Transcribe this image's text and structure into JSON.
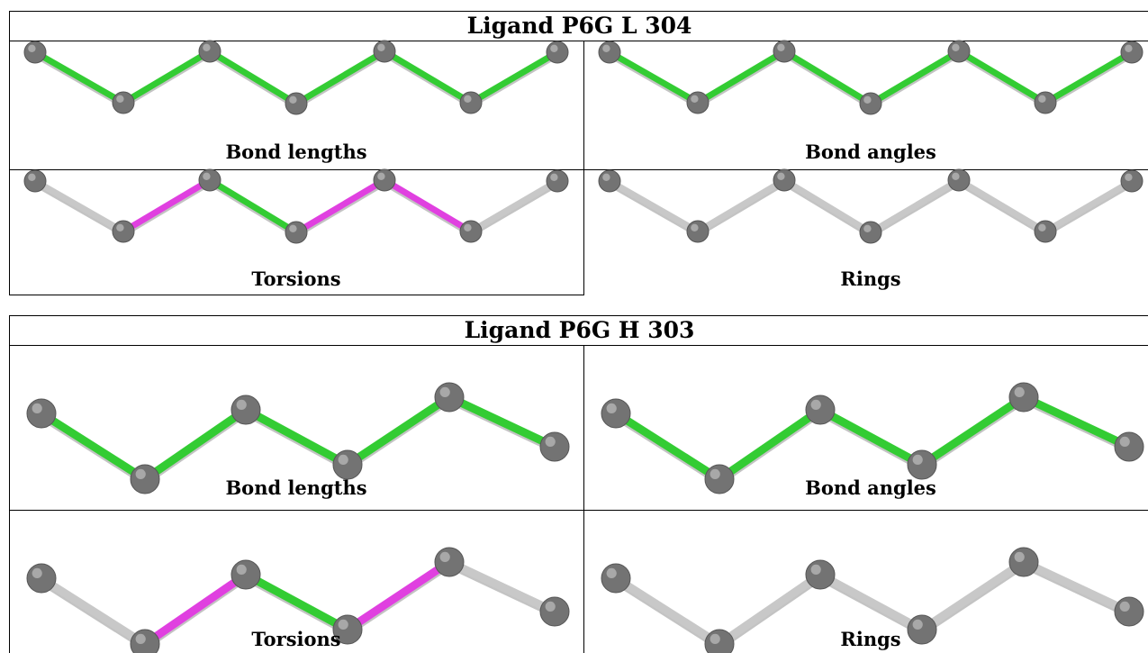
{
  "colors": {
    "green": "#33cc33",
    "magenta": "#e040e0",
    "grey": "#c8c8c8",
    "atom": "#737373"
  },
  "panels": [
    {
      "title": "Ligand P6G L 304",
      "cells": [
        {
          "caption": "Bond lengths",
          "bonds": [
            "green",
            "green",
            "green",
            "green",
            "green",
            "green"
          ]
        },
        {
          "caption": "Bond angles",
          "bonds": [
            "green",
            "green",
            "green",
            "green",
            "green",
            "green"
          ]
        },
        {
          "caption": "Torsions",
          "bonds": [
            "grey",
            "magenta",
            "green",
            "magenta",
            "magenta",
            "grey"
          ]
        },
        {
          "caption": "Rings",
          "bonds": [
            "grey",
            "grey",
            "grey",
            "grey",
            "grey",
            "grey"
          ]
        }
      ]
    },
    {
      "title": "Ligand P6G H 303",
      "cells": [
        {
          "caption": "Bond lengths",
          "bonds": [
            "green",
            "green",
            "green",
            "green",
            "green"
          ]
        },
        {
          "caption": "Bond angles",
          "bonds": [
            "green",
            "green",
            "green",
            "green",
            "green"
          ]
        },
        {
          "caption": "Torsions",
          "bonds": [
            "grey",
            "magenta",
            "green",
            "magenta",
            "grey"
          ]
        },
        {
          "caption": "Rings",
          "bonds": [
            "grey",
            "grey",
            "grey",
            "grey",
            "grey"
          ]
        }
      ]
    }
  ]
}
